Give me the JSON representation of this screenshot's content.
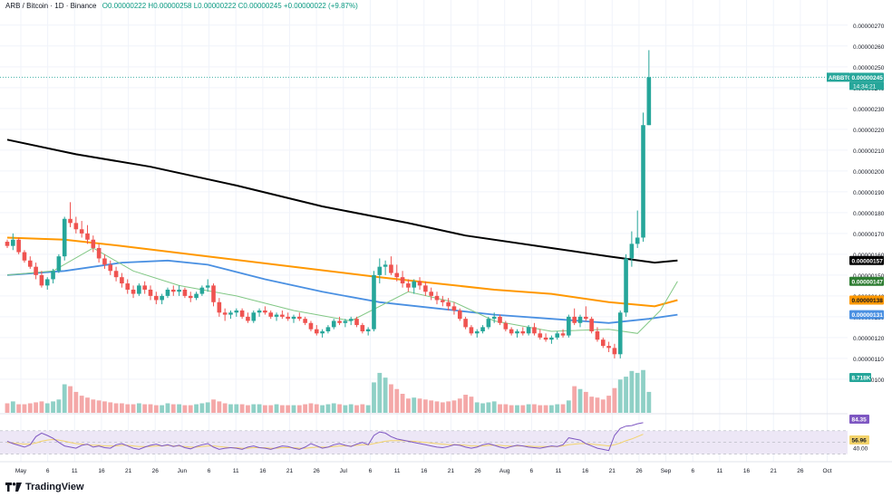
{
  "header": {
    "symbol": "ARB / Bitcoin · 1D · Binance",
    "ohlc": "O0.00000222  H0.00000258  L0.00000222  C0.00000245  +0.00000022 (+9.87%)"
  },
  "brand": {
    "name": "TradingView"
  },
  "colors": {
    "up": "#26a69a",
    "down": "#ef5350",
    "vol_up": "#8fd0c6",
    "vol_down": "#f4a8a8",
    "ma_black": "#000000",
    "ma_orange": "#ff9800",
    "ma_blue": "#4a90e2",
    "ma_green": "#81c784",
    "rsi": "#7e57c2",
    "rsi_ma": "#f3d36b",
    "band": "#ede7f6"
  },
  "price_labels": {
    "current": {
      "ticker": "ARBBTC",
      "price": "0.00000245",
      "countdown": "14:34:21"
    },
    "ma_black": "0.00000157",
    "ma_green": "0.00000147",
    "ma_orange": "0.00000138",
    "ma_blue": "0.00000131",
    "volume": "8.718K",
    "rsi": "84.35",
    "rsi_ma": "56.96",
    "rsi_level": "40.00"
  },
  "chart_data": {
    "type": "candlestick",
    "price_axis": {
      "range": [
        9.3e-07,
        2.76e-06
      ],
      "ticks": [
        "0.00000270",
        "0.00000260",
        "0.00000250",
        "0.00000240",
        "0.00000230",
        "0.00000220",
        "0.00000210",
        "0.00000200",
        "0.00000190",
        "0.00000180",
        "0.00000170",
        "0.00000160",
        "0.00000150",
        "0.00000140",
        "0.00000130",
        "0.00000120",
        "0.00000110",
        "0.00000100"
      ]
    },
    "time_axis": {
      "labels": [
        "May",
        "6",
        "11",
        "16",
        "21",
        "26",
        "Jun",
        "6",
        "11",
        "16",
        "21",
        "26",
        "Jul",
        "6",
        "11",
        "16",
        "21",
        "26",
        "Aug",
        "6",
        "11",
        "16",
        "21",
        "26",
        "Sep",
        "6",
        "11",
        "16",
        "21",
        "26",
        "Oct"
      ]
    },
    "candles_scaled_1e8": [
      [
        166,
        167,
        163,
        164
      ],
      [
        164,
        170,
        162,
        167
      ],
      [
        167,
        168,
        160,
        161
      ],
      [
        161,
        162,
        156,
        157
      ],
      [
        157,
        159,
        153,
        154
      ],
      [
        154,
        156,
        148,
        150
      ],
      [
        150,
        152,
        144,
        145
      ],
      [
        145,
        149,
        143,
        148
      ],
      [
        148,
        153,
        146,
        152
      ],
      [
        152,
        160,
        151,
        159
      ],
      [
        159,
        178,
        157,
        177
      ],
      [
        177,
        185,
        173,
        175
      ],
      [
        175,
        178,
        170,
        172
      ],
      [
        172,
        176,
        168,
        170
      ],
      [
        170,
        174,
        165,
        167
      ],
      [
        167,
        169,
        161,
        163
      ],
      [
        163,
        165,
        156,
        158
      ],
      [
        158,
        160,
        153,
        155
      ],
      [
        155,
        157,
        150,
        152
      ],
      [
        152,
        154,
        147,
        149
      ],
      [
        149,
        151,
        144,
        146
      ],
      [
        146,
        148,
        141,
        143
      ],
      [
        143,
        145,
        139,
        141
      ],
      [
        141,
        146,
        140,
        145
      ],
      [
        145,
        147,
        141,
        143
      ],
      [
        143,
        145,
        138,
        140
      ],
      [
        140,
        142,
        136,
        138
      ],
      [
        138,
        141,
        136,
        140
      ],
      [
        140,
        144,
        139,
        143
      ],
      [
        143,
        145,
        140,
        142
      ],
      [
        142,
        145,
        140,
        143
      ],
      [
        143,
        144,
        139,
        140
      ],
      [
        140,
        142,
        137,
        139
      ],
      [
        139,
        142,
        138,
        141
      ],
      [
        141,
        145,
        140,
        144
      ],
      [
        144,
        148,
        142,
        145
      ],
      [
        145,
        146,
        135,
        137
      ],
      [
        137,
        139,
        130,
        132
      ],
      [
        132,
        134,
        128,
        131
      ],
      [
        131,
        133,
        129,
        132
      ],
      [
        132,
        134,
        130,
        133
      ],
      [
        133,
        134,
        129,
        130
      ],
      [
        130,
        132,
        127,
        128
      ],
      [
        128,
        133,
        127,
        132
      ],
      [
        132,
        134,
        130,
        133
      ],
      [
        133,
        135,
        131,
        132
      ],
      [
        132,
        133,
        129,
        130
      ],
      [
        130,
        132,
        128,
        131
      ],
      [
        131,
        133,
        129,
        130
      ],
      [
        130,
        132,
        128,
        129
      ],
      [
        129,
        131,
        127,
        130
      ],
      [
        130,
        132,
        128,
        129
      ],
      [
        129,
        130,
        126,
        127
      ],
      [
        127,
        128,
        123,
        124
      ],
      [
        124,
        126,
        121,
        122
      ],
      [
        122,
        124,
        120,
        123
      ],
      [
        123,
        126,
        122,
        125
      ],
      [
        125,
        129,
        124,
        128
      ],
      [
        128,
        130,
        126,
        127
      ],
      [
        127,
        129,
        125,
        128
      ],
      [
        128,
        130,
        126,
        129
      ],
      [
        129,
        130,
        125,
        126
      ],
      [
        126,
        127,
        122,
        123
      ],
      [
        123,
        125,
        121,
        124
      ],
      [
        124,
        152,
        123,
        150
      ],
      [
        150,
        158,
        146,
        154
      ],
      [
        154,
        157,
        150,
        155
      ],
      [
        155,
        159,
        150,
        151
      ],
      [
        151,
        155,
        147,
        149
      ],
      [
        149,
        152,
        144,
        146
      ],
      [
        146,
        148,
        142,
        144
      ],
      [
        144,
        148,
        141,
        147
      ],
      [
        147,
        149,
        143,
        145
      ],
      [
        145,
        147,
        140,
        142
      ],
      [
        142,
        144,
        138,
        140
      ],
      [
        140,
        142,
        136,
        138
      ],
      [
        138,
        140,
        135,
        137
      ],
      [
        137,
        139,
        133,
        135
      ],
      [
        135,
        137,
        131,
        133
      ],
      [
        133,
        134,
        128,
        129
      ],
      [
        129,
        130,
        124,
        125
      ],
      [
        125,
        126,
        121,
        122
      ],
      [
        122,
        124,
        120,
        123
      ],
      [
        123,
        126,
        122,
        125
      ],
      [
        125,
        130,
        124,
        129
      ],
      [
        129,
        132,
        127,
        130
      ],
      [
        130,
        131,
        126,
        127
      ],
      [
        127,
        128,
        123,
        124
      ],
      [
        124,
        125,
        121,
        122
      ],
      [
        122,
        124,
        120,
        123
      ],
      [
        123,
        125,
        121,
        122
      ],
      [
        122,
        126,
        121,
        125
      ],
      [
        125,
        127,
        121,
        122
      ],
      [
        122,
        124,
        119,
        120
      ],
      [
        120,
        122,
        118,
        119
      ],
      [
        119,
        121,
        117,
        120
      ],
      [
        120,
        123,
        119,
        122
      ],
      [
        122,
        124,
        120,
        121
      ],
      [
        121,
        131,
        120,
        130
      ],
      [
        130,
        134,
        126,
        127
      ],
      [
        127,
        131,
        125,
        130
      ],
      [
        130,
        135,
        128,
        129
      ],
      [
        129,
        130,
        122,
        123
      ],
      [
        123,
        125,
        118,
        119
      ],
      [
        119,
        120,
        115,
        116
      ],
      [
        116,
        118,
        113,
        115
      ],
      [
        115,
        117,
        110,
        112
      ],
      [
        112,
        133,
        110,
        132
      ],
      [
        132,
        160,
        130,
        158
      ],
      [
        158,
        171,
        154,
        165
      ],
      [
        165,
        181,
        163,
        168
      ],
      [
        168,
        228,
        166,
        222
      ],
      [
        222,
        258,
        222,
        245
      ]
    ],
    "volume_scaled": [
      10,
      12,
      9,
      9,
      10,
      11,
      12,
      10,
      12,
      14,
      30,
      28,
      22,
      18,
      16,
      14,
      13,
      12,
      11,
      10,
      10,
      9,
      9,
      10,
      9,
      9,
      8,
      8,
      10,
      9,
      9,
      8,
      8,
      9,
      10,
      11,
      14,
      12,
      10,
      9,
      9,
      9,
      8,
      9,
      9,
      8,
      8,
      9,
      8,
      8,
      8,
      8,
      9,
      10,
      9,
      8,
      9,
      10,
      9,
      8,
      9,
      8,
      9,
      8,
      32,
      42,
      37,
      30,
      25,
      20,
      15,
      16,
      15,
      14,
      13,
      12,
      11,
      12,
      13,
      15,
      19,
      17,
      11,
      10,
      11,
      12,
      9,
      9,
      8,
      8,
      8,
      9,
      9,
      8,
      8,
      8,
      9,
      9,
      13,
      28,
      25,
      22,
      17,
      16,
      14,
      18,
      26,
      35,
      38,
      44,
      42,
      45,
      22
    ]
  }
}
